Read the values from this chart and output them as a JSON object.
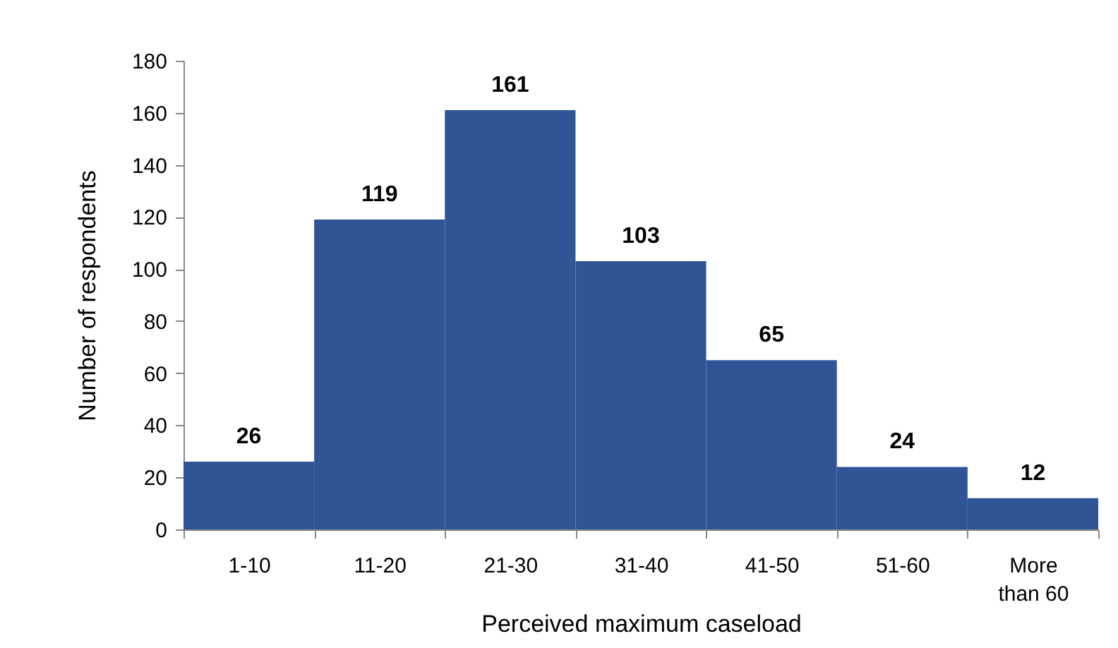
{
  "chart_data": {
    "type": "bar",
    "xlabel": "Perceived maximum caseload",
    "ylabel": "Number of respondents",
    "categories": [
      "1-10",
      "11-20",
      "21-30",
      "31-40",
      "41-50",
      "51-60",
      "More than 60"
    ],
    "values": [
      26,
      119,
      161,
      103,
      65,
      24,
      12
    ],
    "color": "#2f5597",
    "ylim": [
      0,
      180
    ],
    "yticks": [
      0,
      20,
      40,
      60,
      80,
      100,
      120,
      140,
      160,
      180
    ],
    "grid": false,
    "data_labels": true
  }
}
